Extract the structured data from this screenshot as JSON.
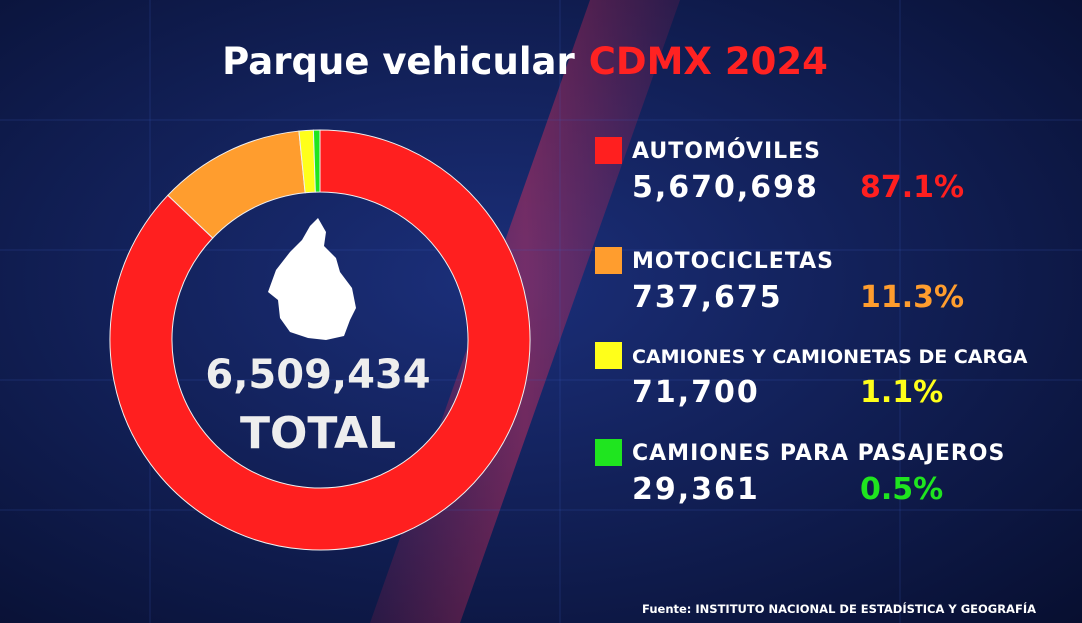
{
  "chart_data": {
    "type": "pie",
    "title": "Parque vehicular",
    "title_highlight": "CDMX 2024",
    "categories": [
      "AUTOMÓVILES",
      "MOTOCICLETAS",
      "CAMIONES Y CAMIONETAS DE CARGA",
      "CAMIONES PARA PASAJEROS"
    ],
    "values": [
      87.1,
      11.3,
      1.1,
      0.5
    ],
    "value_labels": [
      "87.1%",
      "11.3%",
      "1.1%",
      "0.5%"
    ],
    "counts": [
      "5,670,698",
      "737,675",
      "71,700",
      "29,361"
    ],
    "colors": [
      "#ff1f1f",
      "#ff9d2e",
      "#ffff1a",
      "#1fe51f"
    ],
    "total": "6,509,434",
    "total_caption": "TOTAL",
    "source": "Fuente: INSTITUTO NACIONAL DE  ESTADÍSTICA Y GEOGRAFÍA"
  }
}
